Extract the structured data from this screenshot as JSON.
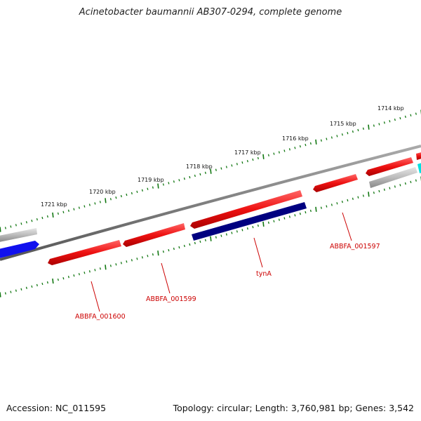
{
  "title": "Acinetobacter baumannii AB307-0294, complete genome",
  "footer": {
    "accession": "Accession: NC_011595",
    "summary": "Topology: circular; Length: 3,760,981 bp; Genes: 3,542"
  },
  "scale_labels": [
    "1721 kbp",
    "1720 kbp",
    "1719 kbp",
    "1718 kbp",
    "1717 kbp",
    "1716 kbp",
    "1715 kbp",
    "1714 kbp"
  ],
  "gene_labels": [
    "ABBFA_001600",
    "ABBFA_001599",
    "tynA",
    "ABBFA_001597"
  ],
  "colors": {
    "gene_red": "#ee1111",
    "gene_navy": "#000080",
    "gene_blue": "#1010ee",
    "gene_grey": "#bbbbbb",
    "gene_cyan": "#00e0e0",
    "backbone": "#777777",
    "ticks": "#117711",
    "label_red": "#cc0000"
  }
}
